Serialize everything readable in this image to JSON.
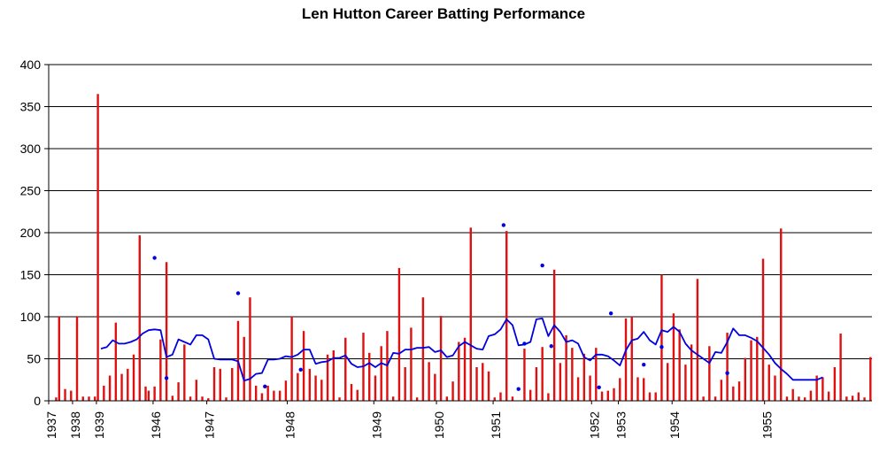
{
  "chart_data": {
    "type": "bar",
    "title": "Len Hutton Career Batting Performance",
    "xlabel": "",
    "ylabel": "",
    "ylim": [
      0,
      400
    ],
    "yticks": [
      0,
      50,
      100,
      150,
      200,
      250,
      300,
      350,
      400
    ],
    "grid": true,
    "colors": {
      "bars": "#e01010",
      "average_line": "#0000e0",
      "not_out_markers": "#0000e0",
      "grid": "#000000"
    },
    "x_year_labels": [
      {
        "label": "1937",
        "index": 0
      },
      {
        "label": "1938",
        "index": 8
      },
      {
        "label": "1939",
        "index": 16
      },
      {
        "label": "1946",
        "index": 35
      },
      {
        "label": "1947",
        "index": 53
      },
      {
        "label": "1948",
        "index": 80
      },
      {
        "label": "1949",
        "index": 109
      },
      {
        "label": "1950",
        "index": 130
      },
      {
        "label": "1951",
        "index": 149
      },
      {
        "label": "1952",
        "index": 182
      },
      {
        "label": "1953",
        "index": 191
      },
      {
        "label": "1954",
        "index": 209
      },
      {
        "label": "1955",
        "index": 240
      }
    ],
    "innings_scores": [
      0,
      0,
      4,
      100,
      0,
      14,
      0,
      12,
      0,
      100,
      0,
      5,
      0,
      5,
      0,
      5,
      365,
      0,
      18,
      0,
      30,
      0,
      93,
      0,
      32,
      0,
      38,
      0,
      55,
      0,
      197,
      0,
      17,
      12,
      0,
      17,
      0,
      73,
      0,
      165,
      0,
      6,
      0,
      22,
      0,
      67,
      0,
      5,
      0,
      25,
      0,
      5,
      0,
      3,
      0,
      40,
      0,
      38,
      0,
      4,
      0,
      39,
      0,
      95,
      0,
      76,
      0,
      123,
      0,
      18,
      0,
      9,
      0,
      18,
      0,
      12,
      0,
      12,
      0,
      24,
      0,
      100,
      0,
      33,
      0,
      83,
      0,
      38,
      0,
      30,
      0,
      25,
      0,
      55,
      0,
      60,
      0,
      4,
      0,
      75,
      0,
      20,
      0,
      13,
      0,
      81,
      0,
      57,
      0,
      30,
      0,
      65,
      0,
      83,
      0,
      5,
      0,
      158,
      0,
      40,
      0,
      87,
      0,
      4,
      0,
      123,
      0,
      46,
      0,
      32,
      0,
      101,
      0,
      5,
      0,
      23,
      0,
      70,
      0,
      75,
      0,
      206,
      0,
      40,
      0,
      45,
      0,
      35,
      0,
      4,
      0,
      10,
      0,
      202,
      0,
      5,
      0,
      0,
      0,
      62,
      0,
      13,
      0,
      40,
      0,
      64,
      0,
      9,
      0,
      156,
      0,
      45,
      0,
      78,
      0,
      63,
      0,
      28,
      0,
      56,
      0,
      30,
      0,
      63,
      0,
      11,
      0,
      12,
      0,
      15,
      0,
      27,
      0,
      98,
      0,
      100,
      0,
      28,
      0,
      27,
      0,
      10,
      0,
      10,
      0,
      150,
      0,
      45,
      0,
      104,
      0,
      85,
      0,
      43,
      0,
      67,
      0,
      145,
      0,
      5,
      0,
      65,
      0,
      5,
      0,
      25,
      0,
      81,
      0,
      17,
      0,
      23,
      0,
      51,
      0,
      72,
      0,
      76,
      0,
      169,
      0,
      43,
      0,
      30,
      0,
      205,
      0,
      5,
      0,
      14,
      0,
      5,
      0,
      4,
      0,
      12,
      0,
      30,
      0,
      28,
      0,
      11,
      0,
      40,
      0,
      80,
      0,
      5,
      0,
      6,
      0,
      10,
      0,
      4,
      0,
      52
    ],
    "not_out_points": [
      {
        "index": 35,
        "value": 170
      },
      {
        "index": 39,
        "value": 27
      },
      {
        "index": 63,
        "value": 128
      },
      {
        "index": 72,
        "value": 17
      },
      {
        "index": 84,
        "value": 37
      },
      {
        "index": 152,
        "value": 209
      },
      {
        "index": 157,
        "value": 14
      },
      {
        "index": 159,
        "value": 68
      },
      {
        "index": 165,
        "value": 161
      },
      {
        "index": 168,
        "value": 65
      },
      {
        "index": 184,
        "value": 16
      },
      {
        "index": 188,
        "value": 104
      },
      {
        "index": 199,
        "value": 43
      },
      {
        "index": 205,
        "value": 64
      },
      {
        "index": 227,
        "value": 33
      }
    ],
    "rolling_average": [
      [
        17,
        62
      ],
      [
        19,
        64
      ],
      [
        21,
        72
      ],
      [
        23,
        68
      ],
      [
        25,
        68
      ],
      [
        27,
        70
      ],
      [
        29,
        73
      ],
      [
        31,
        80
      ],
      [
        33,
        84
      ],
      [
        35,
        85
      ],
      [
        37,
        84
      ],
      [
        39,
        52
      ],
      [
        41,
        55
      ],
      [
        43,
        73
      ],
      [
        45,
        70
      ],
      [
        47,
        67
      ],
      [
        49,
        78
      ],
      [
        51,
        78
      ],
      [
        53,
        73
      ],
      [
        55,
        50
      ],
      [
        57,
        49
      ],
      [
        59,
        49
      ],
      [
        61,
        49
      ],
      [
        63,
        47
      ],
      [
        65,
        24
      ],
      [
        67,
        26
      ],
      [
        69,
        32
      ],
      [
        71,
        33
      ],
      [
        73,
        49
      ],
      [
        75,
        49
      ],
      [
        77,
        50
      ],
      [
        79,
        53
      ],
      [
        81,
        52
      ],
      [
        83,
        55
      ],
      [
        85,
        61
      ],
      [
        87,
        61
      ],
      [
        89,
        44
      ],
      [
        91,
        46
      ],
      [
        93,
        47
      ],
      [
        95,
        51
      ],
      [
        97,
        51
      ],
      [
        99,
        54
      ],
      [
        101,
        44
      ],
      [
        103,
        40
      ],
      [
        105,
        41
      ],
      [
        107,
        45
      ],
      [
        109,
        40
      ],
      [
        111,
        45
      ],
      [
        113,
        42
      ],
      [
        115,
        57
      ],
      [
        117,
        56
      ],
      [
        119,
        61
      ],
      [
        121,
        61
      ],
      [
        123,
        63
      ],
      [
        125,
        63
      ],
      [
        127,
        64
      ],
      [
        129,
        58
      ],
      [
        131,
        60
      ],
      [
        133,
        52
      ],
      [
        135,
        54
      ],
      [
        137,
        65
      ],
      [
        139,
        70
      ],
      [
        141,
        66
      ],
      [
        143,
        62
      ],
      [
        145,
        61
      ],
      [
        147,
        77
      ],
      [
        149,
        79
      ],
      [
        151,
        85
      ],
      [
        153,
        97
      ],
      [
        155,
        90
      ],
      [
        157,
        66
      ],
      [
        159,
        67
      ],
      [
        161,
        70
      ],
      [
        163,
        97
      ],
      [
        165,
        98
      ],
      [
        167,
        77
      ],
      [
        169,
        90
      ],
      [
        171,
        82
      ],
      [
        173,
        70
      ],
      [
        175,
        72
      ],
      [
        177,
        68
      ],
      [
        179,
        52
      ],
      [
        181,
        48
      ],
      [
        183,
        55
      ],
      [
        185,
        55
      ],
      [
        187,
        53
      ],
      [
        189,
        48
      ],
      [
        191,
        42
      ],
      [
        193,
        60
      ],
      [
        195,
        72
      ],
      [
        197,
        74
      ],
      [
        199,
        82
      ],
      [
        201,
        72
      ],
      [
        203,
        67
      ],
      [
        205,
        84
      ],
      [
        207,
        82
      ],
      [
        209,
        88
      ],
      [
        211,
        82
      ],
      [
        213,
        68
      ],
      [
        215,
        60
      ],
      [
        217,
        55
      ],
      [
        219,
        50
      ],
      [
        221,
        45
      ],
      [
        223,
        58
      ],
      [
        225,
        57
      ],
      [
        227,
        70
      ],
      [
        229,
        86
      ],
      [
        231,
        78
      ],
      [
        233,
        78
      ],
      [
        235,
        75
      ],
      [
        237,
        71
      ],
      [
        239,
        63
      ],
      [
        241,
        55
      ],
      [
        243,
        45
      ],
      [
        245,
        38
      ],
      [
        247,
        32
      ],
      [
        249,
        25
      ],
      [
        251,
        25
      ],
      [
        253,
        25
      ],
      [
        255,
        25
      ],
      [
        257,
        25
      ],
      [
        259,
        28
      ]
    ]
  }
}
